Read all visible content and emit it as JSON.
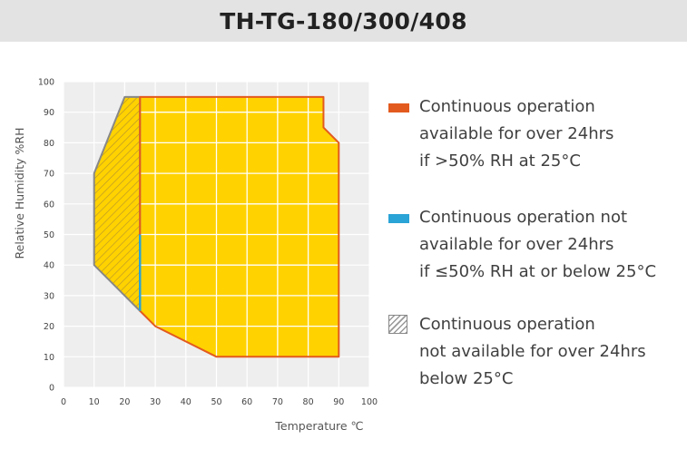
{
  "title": "TH-TG-180/300/408",
  "chart_data": {
    "type": "area",
    "xlabel": "Temperature ℃",
    "ylabel": "Relative Humidity %RH",
    "xlim": [
      0,
      100
    ],
    "ylim": [
      0,
      100
    ],
    "xticks": [
      0,
      10,
      20,
      30,
      40,
      50,
      60,
      70,
      80,
      90,
      100
    ],
    "yticks": [
      0,
      10,
      20,
      30,
      40,
      50,
      60,
      70,
      80,
      90,
      100
    ],
    "grid": true,
    "legend_position": "right",
    "series": [
      {
        "name": "Continuous operation available for over 24hrs if >50% RH at 25°C",
        "color": "#e35a1e",
        "fill": "#ffd200",
        "points": [
          [
            25,
            95
          ],
          [
            85,
            95
          ],
          [
            85,
            85
          ],
          [
            90,
            80
          ],
          [
            90,
            10
          ],
          [
            50,
            10
          ],
          [
            30,
            20
          ],
          [
            25,
            25
          ]
        ]
      },
      {
        "name": "Continuous operation not available for over 24hrs if ≤50% RH at or below 25°C",
        "color": "#2aa3d6",
        "points": [
          [
            25,
            50
          ],
          [
            25,
            25
          ]
        ]
      },
      {
        "name": "Continuous operation not available for over 24hrs below 25°C",
        "color": "#888888",
        "fill": "hatched",
        "points": [
          [
            20,
            95
          ],
          [
            25,
            95
          ],
          [
            25,
            25
          ],
          [
            20,
            30
          ],
          [
            10,
            40
          ],
          [
            10,
            70
          ]
        ]
      }
    ]
  },
  "legend": [
    {
      "icon": "orange-bar",
      "color": "#e35a1e",
      "lines": [
        "Continuous operation",
        "available for over 24hrs",
        "if >50% RH at 25°C"
      ]
    },
    {
      "icon": "blue-bar",
      "color": "#2aa3d6",
      "lines": [
        "Continuous operation not",
        "available for over 24hrs",
        "if ≤50% RH at or below 25°C"
      ]
    },
    {
      "icon": "hatched-box",
      "color": "#888888",
      "lines": [
        "Continuous operation",
        "not available for over 24hrs",
        "below 25°C"
      ]
    }
  ]
}
